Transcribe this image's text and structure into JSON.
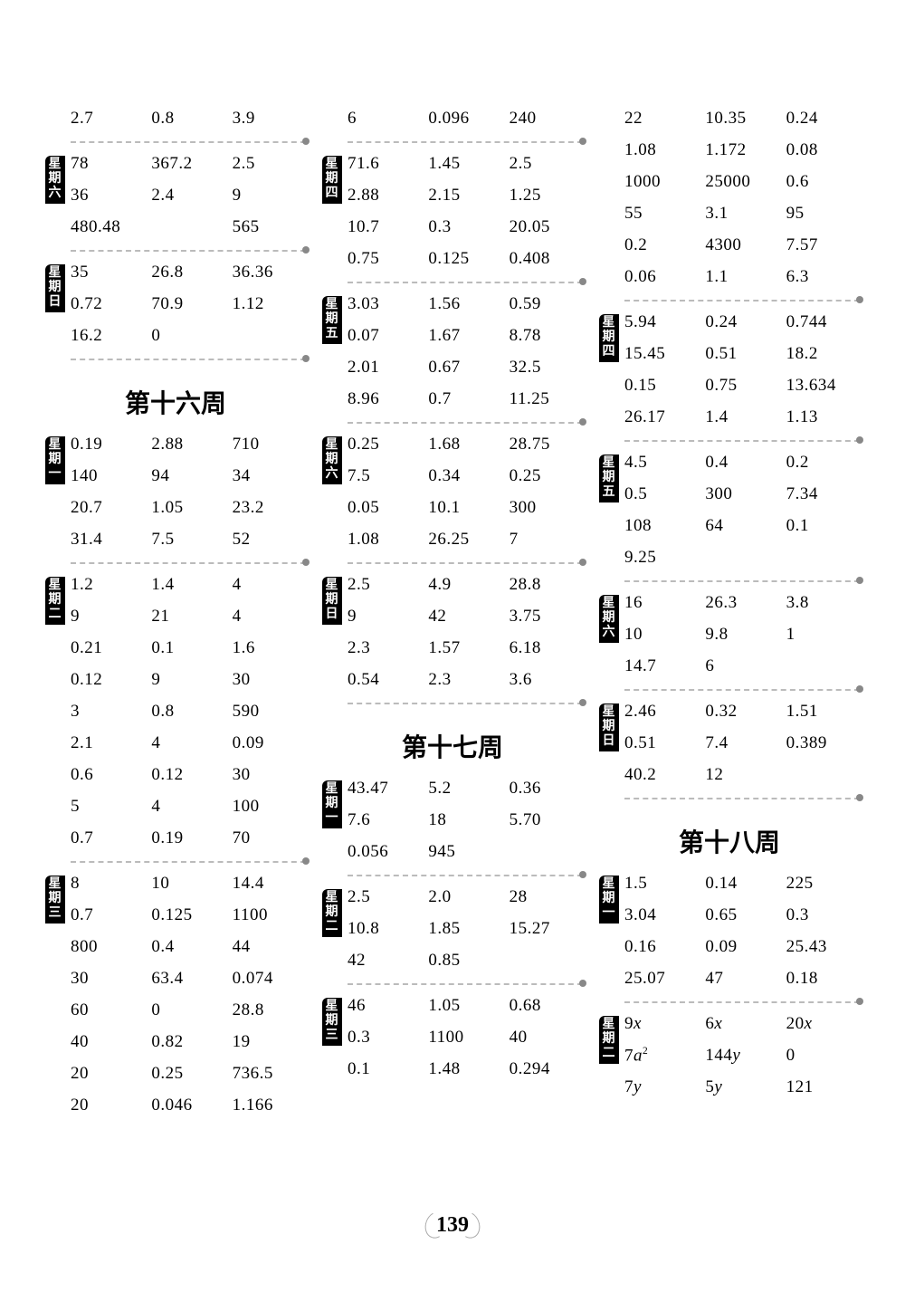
{
  "page_number": "139",
  "columns": [
    {
      "sections": [
        {
          "type": "rows",
          "label": null,
          "rows": [
            [
              "2.7",
              "0.8",
              "3.9"
            ]
          ]
        },
        {
          "type": "divider"
        },
        {
          "type": "rows",
          "label": "星期六",
          "rows": [
            [
              "78",
              "367.2",
              "2.5"
            ],
            [
              "36",
              "2.4",
              "9"
            ],
            [
              "480.48",
              "",
              "565"
            ]
          ]
        },
        {
          "type": "divider"
        },
        {
          "type": "rows",
          "label": "星期日",
          "rows": [
            [
              "35",
              "26.8",
              "36.36"
            ],
            [
              "0.72",
              "70.9",
              "1.12"
            ],
            [
              "16.2",
              "0",
              ""
            ]
          ]
        },
        {
          "type": "divider"
        },
        {
          "type": "title",
          "text": "第十六周"
        },
        {
          "type": "rows",
          "label": "星期一",
          "rows": [
            [
              "0.19",
              "2.88",
              "710"
            ],
            [
              "140",
              "94",
              "34"
            ],
            [
              "20.7",
              "1.05",
              "23.2"
            ],
            [
              "31.4",
              "7.5",
              "52"
            ]
          ]
        },
        {
          "type": "divider"
        },
        {
          "type": "rows",
          "label": "星期二",
          "rows": [
            [
              "1.2",
              "1.4",
              "4"
            ],
            [
              "9",
              "21",
              "4"
            ],
            [
              "0.21",
              "0.1",
              "1.6"
            ],
            [
              "0.12",
              "9",
              "30"
            ],
            [
              "3",
              "0.8",
              "590"
            ],
            [
              "2.1",
              "4",
              "0.09"
            ],
            [
              "0.6",
              "0.12",
              "30"
            ],
            [
              "5",
              "4",
              "100"
            ],
            [
              "0.7",
              "0.19",
              "70"
            ]
          ]
        },
        {
          "type": "divider"
        },
        {
          "type": "rows",
          "label": "星期三",
          "rows": [
            [
              "8",
              "10",
              "14.4"
            ],
            [
              "0.7",
              "0.125",
              "1100"
            ],
            [
              "800",
              "0.4",
              "44"
            ],
            [
              "30",
              "63.4",
              "0.074"
            ],
            [
              "60",
              "0",
              "28.8"
            ],
            [
              "40",
              "0.82",
              "19"
            ],
            [
              "20",
              "0.25",
              "736.5"
            ],
            [
              "20",
              "0.046",
              "1.166"
            ]
          ]
        }
      ]
    },
    {
      "sections": [
        {
          "type": "rows",
          "label": null,
          "rows": [
            [
              "6",
              "0.096",
              "240"
            ]
          ]
        },
        {
          "type": "divider"
        },
        {
          "type": "rows",
          "label": "星期四",
          "rows": [
            [
              "71.6",
              "1.45",
              "2.5"
            ],
            [
              "2.88",
              "2.15",
              "1.25"
            ],
            [
              "10.7",
              "0.3",
              "20.05"
            ],
            [
              "0.75",
              "0.125",
              "0.408"
            ]
          ]
        },
        {
          "type": "divider"
        },
        {
          "type": "rows",
          "label": "星期五",
          "rows": [
            [
              "3.03",
              "1.56",
              "0.59"
            ],
            [
              "0.07",
              "1.67",
              "8.78"
            ],
            [
              "2.01",
              "0.67",
              "32.5"
            ],
            [
              "8.96",
              "0.7",
              "11.25"
            ]
          ]
        },
        {
          "type": "divider"
        },
        {
          "type": "rows",
          "label": "星期六",
          "rows": [
            [
              "0.25",
              "1.68",
              "28.75"
            ],
            [
              "7.5",
              "0.34",
              "0.25"
            ],
            [
              "0.05",
              "10.1",
              "300"
            ],
            [
              "1.08",
              "26.25",
              "7"
            ]
          ]
        },
        {
          "type": "divider"
        },
        {
          "type": "rows",
          "label": "星期日",
          "rows": [
            [
              "2.5",
              "4.9",
              "28.8"
            ],
            [
              "9",
              "42",
              "3.75"
            ],
            [
              "2.3",
              "1.57",
              "6.18"
            ],
            [
              "0.54",
              "2.3",
              "3.6"
            ]
          ]
        },
        {
          "type": "divider"
        },
        {
          "type": "title",
          "text": "第十七周"
        },
        {
          "type": "rows",
          "label": "星期一",
          "rows": [
            [
              "43.47",
              "5.2",
              "0.36"
            ],
            [
              "7.6",
              "18",
              "5.70"
            ],
            [
              "0.056",
              "945",
              ""
            ]
          ]
        },
        {
          "type": "divider"
        },
        {
          "type": "rows",
          "label": "星期二",
          "rows": [
            [
              "2.5",
              "2.0",
              "28"
            ],
            [
              "10.8",
              "1.85",
              "15.27"
            ],
            [
              "42",
              "0.85",
              ""
            ]
          ]
        },
        {
          "type": "divider"
        },
        {
          "type": "rows",
          "label": "星期三",
          "rows": [
            [
              "46",
              "1.05",
              "0.68"
            ],
            [
              "0.3",
              "1100",
              "40"
            ],
            [
              "0.1",
              "1.48",
              "0.294"
            ]
          ]
        }
      ]
    },
    {
      "sections": [
        {
          "type": "rows",
          "label": null,
          "rows": [
            [
              "22",
              "10.35",
              "0.24"
            ],
            [
              "1.08",
              "1.172",
              "0.08"
            ],
            [
              "1000",
              "25000",
              "0.6"
            ],
            [
              "55",
              "3.1",
              "95"
            ],
            [
              "0.2",
              "4300",
              "7.57"
            ],
            [
              "0.06",
              "1.1",
              "6.3"
            ]
          ]
        },
        {
          "type": "divider"
        },
        {
          "type": "rows",
          "label": "星期四",
          "rows": [
            [
              "5.94",
              "0.24",
              "0.744"
            ],
            [
              "15.45",
              "0.51",
              "18.2"
            ],
            [
              "0.15",
              "0.75",
              "13.634"
            ],
            [
              "26.17",
              "1.4",
              "1.13"
            ]
          ]
        },
        {
          "type": "divider"
        },
        {
          "type": "rows",
          "label": "星期五",
          "rows": [
            [
              "4.5",
              "0.4",
              "0.2"
            ],
            [
              "0.5",
              "300",
              "7.34"
            ],
            [
              "108",
              "64",
              "0.1"
            ],
            [
              "9.25",
              "",
              ""
            ]
          ]
        },
        {
          "type": "divider"
        },
        {
          "type": "rows",
          "label": "星期六",
          "rows": [
            [
              "16",
              "26.3",
              "3.8"
            ],
            [
              "10",
              "9.8",
              "1"
            ],
            [
              "14.7",
              "6",
              ""
            ]
          ]
        },
        {
          "type": "divider"
        },
        {
          "type": "rows",
          "label": "星期日",
          "rows": [
            [
              "2.46",
              "0.32",
              "1.51"
            ],
            [
              "0.51",
              "7.4",
              "0.389"
            ],
            [
              "40.2",
              "12",
              ""
            ]
          ]
        },
        {
          "type": "divider"
        },
        {
          "type": "title",
          "text": "第十八周"
        },
        {
          "type": "rows",
          "label": "星期一",
          "rows": [
            [
              "1.5",
              "0.14",
              "225"
            ],
            [
              "3.04",
              "0.65",
              "0.3"
            ],
            [
              "0.16",
              "0.09",
              "25.43"
            ],
            [
              "25.07",
              "47",
              "0.18"
            ]
          ]
        },
        {
          "type": "divider"
        },
        {
          "type": "rows",
          "label": "星期二",
          "rows": [
            [
              "9x",
              "6x",
              "20x"
            ],
            [
              "7a²",
              "144y",
              "0"
            ],
            [
              "7y",
              "5y",
              "121"
            ]
          ],
          "italic": true
        }
      ]
    }
  ]
}
